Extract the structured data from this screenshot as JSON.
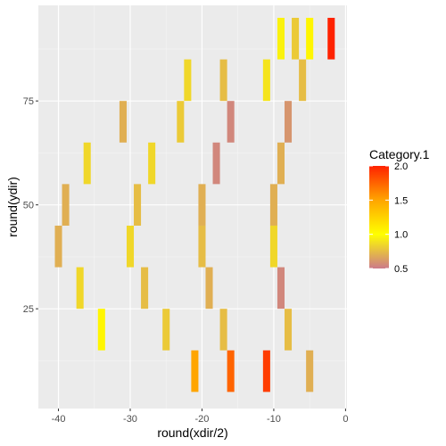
{
  "chart_data": {
    "type": "heatmap",
    "xlabel": "round(xdir/2)",
    "ylabel": "round(ydir)",
    "xlim": [
      -42.8,
      0.2
    ],
    "ylim": [
      1,
      98
    ],
    "x_ticks": [
      -40,
      -30,
      -20,
      -10,
      0
    ],
    "x_tick_labels": [
      "-40",
      "-30",
      "-20",
      "-10",
      "0"
    ],
    "y_ticks": [
      25,
      50,
      75
    ],
    "y_tick_labels": [
      "25",
      "50",
      "75"
    ],
    "grid": true,
    "legend": {
      "title": "Category.1",
      "placement": "right",
      "range": [
        0.5,
        2.0
      ],
      "breaks": [
        0.5,
        1.0,
        1.5,
        2.0
      ],
      "break_labels": [
        "0.5",
        "1.0",
        "1.5",
        "2.0"
      ],
      "color_stops": [
        {
          "value": 0.5,
          "color": "#cc7a8a"
        },
        {
          "value": 1.0,
          "color": "#ffff00"
        },
        {
          "value": 1.5,
          "color": "#ffa500"
        },
        {
          "value": 2.0,
          "color": "#ff2200"
        }
      ]
    },
    "tile_width": 1,
    "tile_height": 10,
    "tiles": [
      {
        "x": -2,
        "y": 90,
        "value": 2.0
      },
      {
        "x": -5,
        "y": 90,
        "value": 1.05
      },
      {
        "x": -7,
        "y": 90,
        "value": 0.8
      },
      {
        "x": -9,
        "y": 90,
        "value": 0.95
      },
      {
        "x": -6,
        "y": 80,
        "value": 0.75
      },
      {
        "x": -11,
        "y": 80,
        "value": 0.9
      },
      {
        "x": -17,
        "y": 80,
        "value": 0.75
      },
      {
        "x": -22,
        "y": 80,
        "value": 0.85
      },
      {
        "x": -8,
        "y": 70,
        "value": 0.6
      },
      {
        "x": -16,
        "y": 70,
        "value": 0.55
      },
      {
        "x": -23,
        "y": 70,
        "value": 0.8
      },
      {
        "x": -31,
        "y": 70,
        "value": 0.7
      },
      {
        "x": -9,
        "y": 60,
        "value": 0.7
      },
      {
        "x": -18,
        "y": 60,
        "value": 0.55
      },
      {
        "x": -27,
        "y": 60,
        "value": 0.85
      },
      {
        "x": -36,
        "y": 60,
        "value": 0.85
      },
      {
        "x": -10,
        "y": 50,
        "value": 0.7
      },
      {
        "x": -20,
        "y": 50,
        "value": 0.7
      },
      {
        "x": -29,
        "y": 50,
        "value": 0.75
      },
      {
        "x": -39,
        "y": 50,
        "value": 0.7
      },
      {
        "x": -10,
        "y": 40,
        "value": 0.85
      },
      {
        "x": -20,
        "y": 40,
        "value": 0.75
      },
      {
        "x": -30,
        "y": 40,
        "value": 0.85
      },
      {
        "x": -40,
        "y": 40,
        "value": 0.7
      },
      {
        "x": -9,
        "y": 30,
        "value": 0.55
      },
      {
        "x": -19,
        "y": 30,
        "value": 0.7
      },
      {
        "x": -28,
        "y": 30,
        "value": 0.75
      },
      {
        "x": -37,
        "y": 30,
        "value": 0.85
      },
      {
        "x": -8,
        "y": 20,
        "value": 0.75
      },
      {
        "x": -17,
        "y": 20,
        "value": 0.75
      },
      {
        "x": -25,
        "y": 20,
        "value": 0.8
      },
      {
        "x": -34,
        "y": 20,
        "value": 1.05
      },
      {
        "x": -5,
        "y": 10,
        "value": 0.7
      },
      {
        "x": -11,
        "y": 10,
        "value": 1.9
      },
      {
        "x": -16,
        "y": 10,
        "value": 1.75
      },
      {
        "x": -21,
        "y": 10,
        "value": 1.5
      }
    ]
  }
}
